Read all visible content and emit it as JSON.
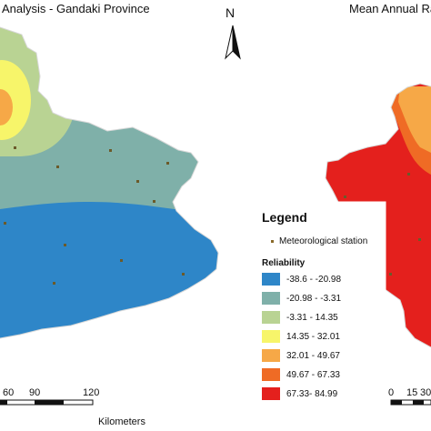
{
  "map": {
    "left_title": "Analysis - Gandaki Province",
    "right_title": "Mean Annual Ra",
    "north_label": "N"
  },
  "legend": {
    "title": "Legend",
    "station_label": "Meteorological station",
    "subtitle": "Reliability",
    "classes": [
      {
        "label": "-38.6 - -20.98",
        "color": "#2e86c8"
      },
      {
        "label": "-20.98 - -3.31",
        "color": "#7fb0a9"
      },
      {
        "label": "-3.31 - 14.35",
        "color": "#b9d393"
      },
      {
        "label": "14.35 - 32.01",
        "color": "#f7f56a"
      },
      {
        "label": "32.01 - 49.67",
        "color": "#f6a847"
      },
      {
        "label": "49.67 - 67.33",
        "color": "#ef6b25"
      },
      {
        "label": "67.33- 84.99",
        "color": "#e4201d"
      }
    ]
  },
  "scalebar_left": {
    "ticks": [
      "60",
      "90",
      "120"
    ],
    "unit": "Kilometers"
  },
  "scalebar_right": {
    "ticks": [
      "0",
      "15",
      "30"
    ]
  }
}
